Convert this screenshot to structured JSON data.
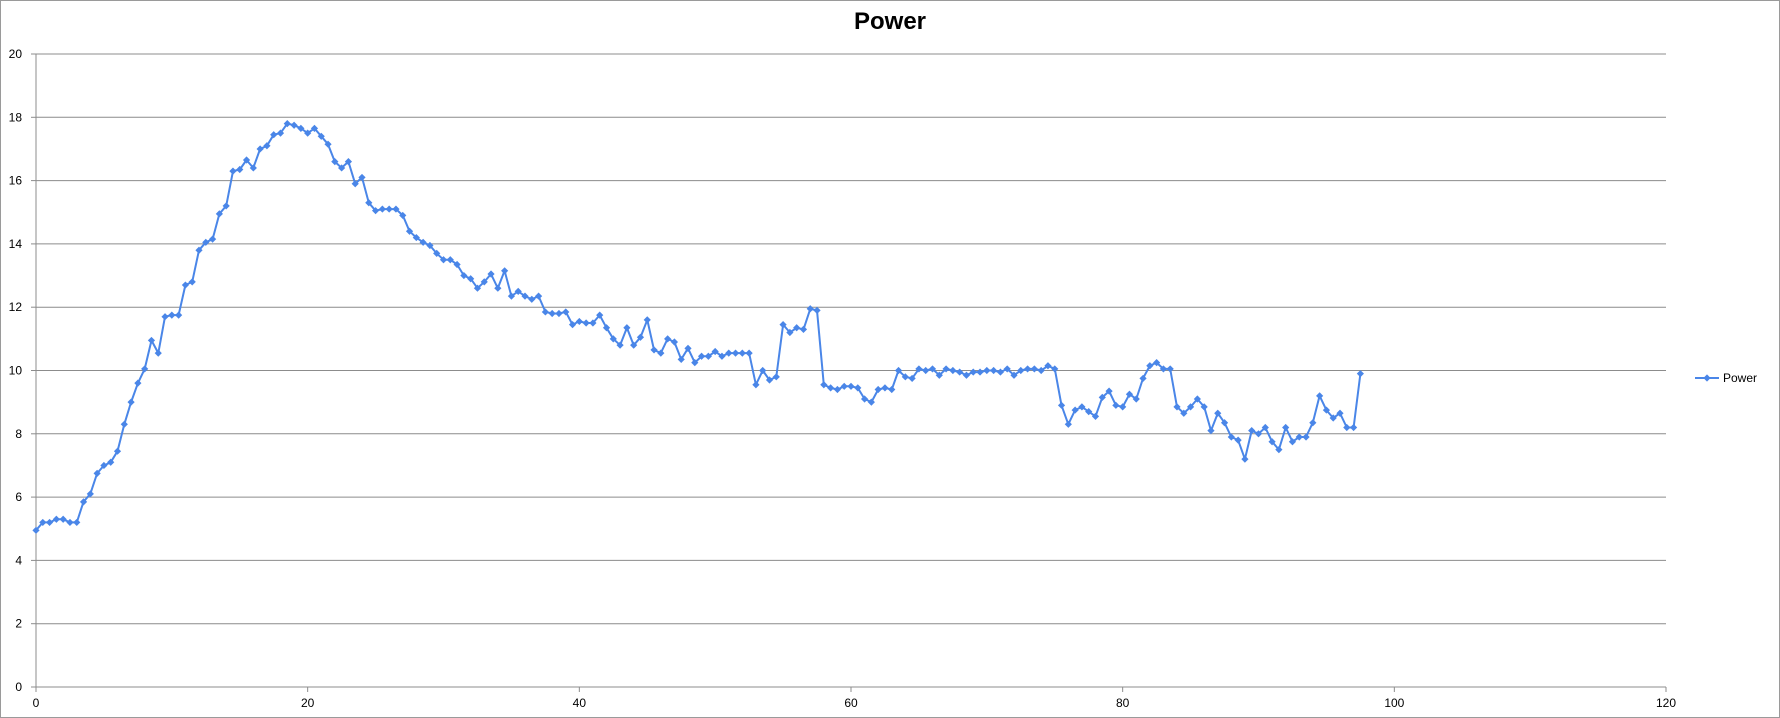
{
  "chart_data": {
    "type": "line",
    "title": "Power",
    "xlabel": "",
    "ylabel": "",
    "xlim": [
      0,
      120
    ],
    "ylim": [
      0,
      20
    ],
    "x_ticks": [
      0,
      20,
      40,
      60,
      80,
      100,
      120
    ],
    "y_ticks": [
      0,
      2,
      4,
      6,
      8,
      10,
      12,
      14,
      16,
      18,
      20
    ],
    "grid": "horizontal",
    "legend_position": "right",
    "series": [
      {
        "name": "Power",
        "color": "#4a86e8",
        "marker": "diamond",
        "x": [
          0,
          0.5,
          1,
          1.5,
          2,
          2.5,
          3,
          3.5,
          4,
          4.5,
          5,
          5.5,
          6,
          6.5,
          7,
          7.5,
          8,
          8.5,
          9,
          9.5,
          10,
          10.5,
          11,
          11.5,
          12,
          12.5,
          13,
          13.5,
          14,
          14.5,
          15,
          15.5,
          16,
          16.5,
          17,
          17.5,
          18,
          18.5,
          19,
          19.5,
          20,
          20.5,
          21,
          21.5,
          22,
          22.5,
          23,
          23.5,
          24,
          24.5,
          25,
          25.5,
          26,
          26.5,
          27,
          27.5,
          28,
          28.5,
          29,
          29.5,
          30,
          30.5,
          31,
          31.5,
          32,
          32.5,
          33,
          33.5,
          34,
          34.5,
          35,
          35.5,
          36,
          36.5,
          37,
          37.5,
          38,
          38.5,
          39,
          39.5,
          40,
          40.5,
          41,
          41.5,
          42,
          42.5,
          43,
          43.5,
          44,
          44.5,
          45,
          45.5,
          46,
          46.5,
          47,
          47.5,
          48,
          48.5,
          49,
          49.5,
          50,
          50.5,
          51,
          51.5,
          52,
          52.5,
          53,
          53.5,
          54,
          54.5,
          55,
          55.5,
          56,
          56.5,
          57,
          57.5,
          58,
          58.5,
          59,
          59.5,
          60,
          60.5,
          61,
          61.5,
          62,
          62.5,
          63,
          63.5,
          64,
          64.5,
          65,
          65.5,
          66,
          66.5,
          67,
          67.5,
          68,
          68.5,
          69,
          69.5,
          70,
          70.5,
          71,
          71.5,
          72,
          72.5,
          73,
          73.5,
          74,
          74.5,
          75,
          75.5,
          76,
          76.5,
          77,
          77.5,
          78,
          78.5,
          79,
          79.5,
          80,
          80.5,
          81,
          81.5,
          82,
          82.5,
          83,
          83.5,
          84,
          84.5,
          85,
          85.5,
          86,
          86.5,
          87,
          87.5,
          88,
          88.5,
          89,
          89.5,
          90,
          90.5,
          91,
          91.5,
          92,
          92.5,
          93,
          93.5,
          94,
          94.5,
          95,
          95.5,
          96,
          96.5,
          97,
          97.5
        ],
        "values": [
          4.95,
          5.2,
          5.2,
          5.3,
          5.3,
          5.2,
          5.2,
          5.85,
          6.1,
          6.75,
          7.0,
          7.1,
          7.45,
          8.3,
          9.0,
          9.6,
          10.05,
          10.95,
          10.55,
          11.7,
          11.75,
          11.75,
          12.7,
          12.8,
          13.8,
          14.05,
          14.15,
          14.95,
          15.2,
          16.3,
          16.35,
          16.65,
          16.4,
          17.0,
          17.1,
          17.45,
          17.5,
          17.8,
          17.75,
          17.65,
          17.5,
          17.65,
          17.4,
          17.15,
          16.6,
          16.4,
          16.6,
          15.9,
          16.1,
          15.3,
          15.05,
          15.1,
          15.1,
          15.1,
          14.9,
          14.4,
          14.2,
          14.05,
          13.95,
          13.7,
          13.5,
          13.5,
          13.35,
          13.0,
          12.9,
          12.6,
          12.8,
          13.05,
          12.6,
          13.15,
          12.35,
          12.5,
          12.35,
          12.25,
          12.35,
          11.85,
          11.8,
          11.8,
          11.85,
          11.45,
          11.55,
          11.5,
          11.5,
          11.75,
          11.35,
          11.0,
          10.8,
          11.35,
          10.8,
          11.05,
          11.6,
          10.65,
          10.55,
          11.0,
          10.9,
          10.35,
          10.7,
          10.25,
          10.45,
          10.45,
          10.6,
          10.45,
          10.55,
          10.55,
          10.55,
          10.55,
          9.55,
          10.0,
          9.7,
          9.8,
          11.45,
          11.2,
          11.35,
          11.3,
          11.95,
          11.9,
          9.55,
          9.45,
          9.4,
          9.5,
          9.5,
          9.45,
          9.1,
          9.0,
          9.4,
          9.45,
          9.4,
          10.0,
          9.8,
          9.75,
          10.05,
          10.0,
          10.05,
          9.85,
          10.05,
          10.0,
          9.95,
          9.85,
          9.95,
          9.95,
          10.0,
          10.0,
          9.95,
          10.05,
          9.85,
          10.0,
          10.05,
          10.05,
          10.0,
          10.15,
          10.05,
          8.9,
          8.3,
          8.75,
          8.85,
          8.7,
          8.55,
          9.15,
          9.35,
          8.9,
          8.85,
          9.25,
          9.1,
          9.75,
          10.15,
          10.25,
          10.05,
          10.05,
          8.85,
          8.65,
          8.85,
          9.1,
          8.85,
          8.1,
          8.65,
          8.35,
          7.9,
          7.8,
          7.2,
          8.1,
          8.0,
          8.2,
          7.75,
          7.5,
          8.2,
          7.75,
          7.9,
          7.9,
          8.35,
          9.2,
          8.75,
          8.5,
          8.65,
          8.2,
          8.2,
          9.9
        ]
      }
    ]
  }
}
